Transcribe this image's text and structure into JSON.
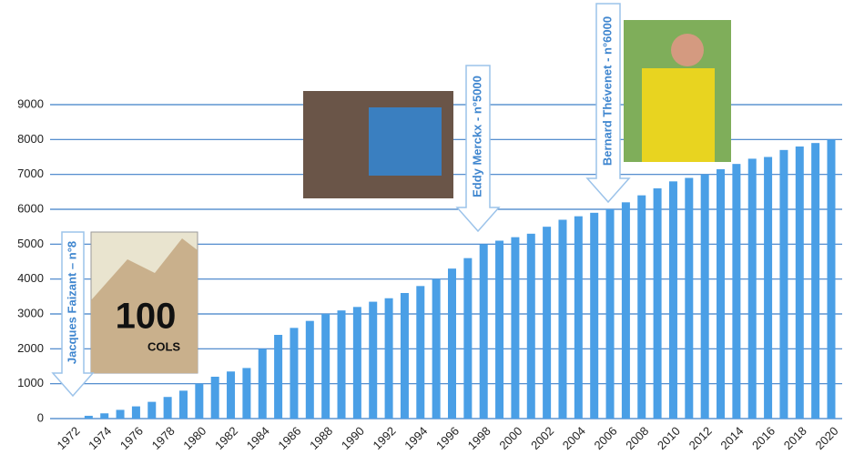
{
  "chart_data": {
    "type": "bar",
    "categories": [
      "1972",
      null,
      "1974",
      null,
      "1976",
      null,
      "1978",
      null,
      "1980",
      null,
      "1982",
      null,
      "1984",
      null,
      "1986",
      null,
      "1988",
      null,
      "1990",
      null,
      "1992",
      null,
      "1994",
      null,
      "1996",
      null,
      "1998",
      null,
      "2000",
      null,
      "2002",
      null,
      "2004",
      null,
      "2006",
      null,
      "2008",
      null,
      "2010",
      null,
      "2012",
      null,
      "2014",
      null,
      "2016",
      null,
      "2018",
      null,
      "2020"
    ],
    "values": [
      null,
      80,
      150,
      250,
      350,
      480,
      620,
      800,
      1000,
      1200,
      1350,
      1450,
      2000,
      2400,
      2600,
      2800,
      3000,
      3100,
      3200,
      3350,
      3450,
      3600,
      3800,
      4000,
      4300,
      4600,
      5000,
      5100,
      5200,
      5300,
      5500,
      5700,
      5800,
      5900,
      6000,
      6200,
      6400,
      6600,
      6800,
      6900,
      7000,
      7150,
      7300,
      7450,
      7500,
      7700,
      7800,
      7900,
      8000
    ],
    "color": "#4a9fe6",
    "ylim": [
      0,
      9000
    ],
    "yticks": [
      0,
      1000,
      2000,
      3000,
      4000,
      5000,
      6000,
      7000,
      8000,
      9000
    ],
    "grid": true,
    "annotations": [
      "Jacques Faizant – n°8",
      "Eddy Merckx - n°5000",
      "Bernard Thévenet - n°6000"
    ],
    "image_text": [
      "100",
      "COLS"
    ]
  }
}
